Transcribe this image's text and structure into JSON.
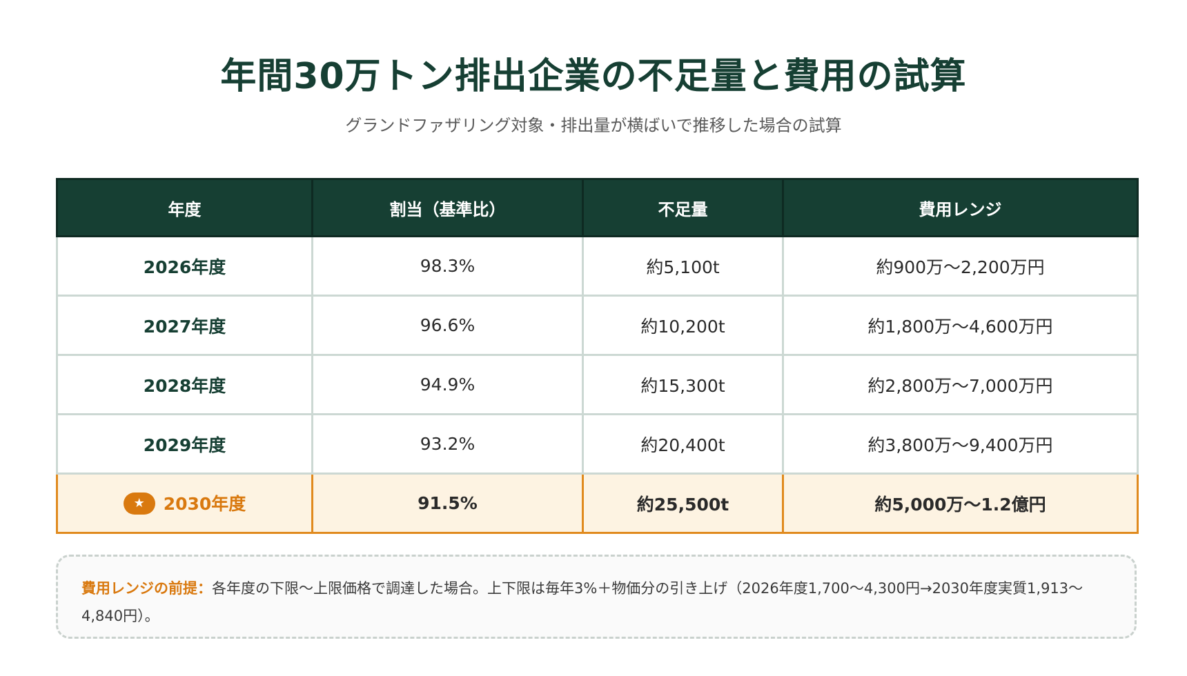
{
  "title": "年間30万トン排出企業の不足量と費用の試算",
  "subtitle": "グランドファザリング対象・排出量が横ばいで推移した場合の試算",
  "table": {
    "headers": [
      "年度",
      "割当（基準比）",
      "不足量",
      "費用レンジ"
    ],
    "rows": [
      {
        "year": "2026年度",
        "allocation": "98.3%",
        "shortage": "約5,100t",
        "cost": "約900万〜2,200万円"
      },
      {
        "year": "2027年度",
        "allocation": "96.6%",
        "shortage": "約10,200t",
        "cost": "約1,800万〜4,600万円"
      },
      {
        "year": "2028年度",
        "allocation": "94.9%",
        "shortage": "約15,300t",
        "cost": "約2,800万〜7,000万円"
      },
      {
        "year": "2029年度",
        "allocation": "93.2%",
        "shortage": "約20,400t",
        "cost": "約3,800万〜9,400万円"
      },
      {
        "year": "2030年度",
        "allocation": "91.5%",
        "shortage": "約25,500t",
        "cost": "約5,000万〜1.2億円",
        "highlight": true,
        "badge": "★"
      }
    ]
  },
  "note": {
    "label": "費用レンジの前提：",
    "text": "各年度の下限〜上限価格で調達した場合。上下限は毎年3%＋物価分の引き上げ（2026年度1,700〜4,300円→2030年度実質1,913〜4,840円）。"
  },
  "colors": {
    "header_bg": "#163f33",
    "accent": "#d9790f",
    "highlight_bg": "#fdf3e2",
    "row_border": "#ccd8d3"
  }
}
